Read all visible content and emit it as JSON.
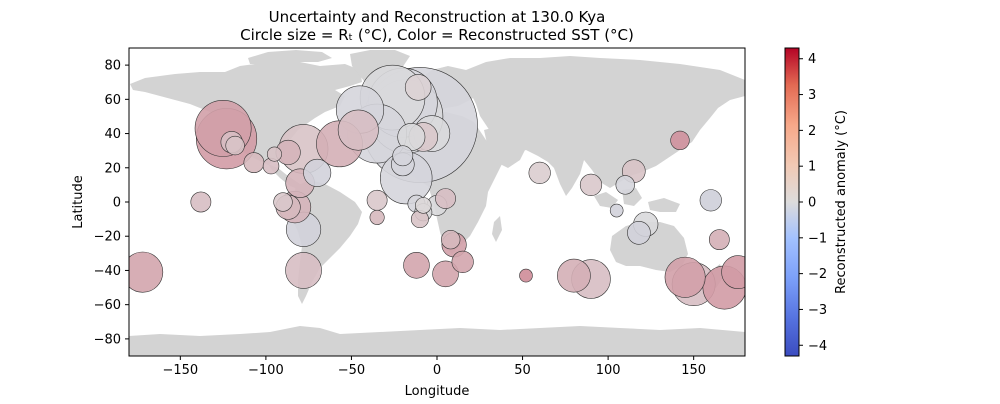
{
  "chart_data": {
    "type": "scatter",
    "title": "Uncertainty and Reconstruction at 130.0 Kya",
    "subtitle": "Circle size = Rₜ (°C), Color = Reconstructed SST (°C)",
    "xlabel": "Longitude",
    "ylabel": "Latitude",
    "xlim": [
      -180,
      180
    ],
    "ylim": [
      -90,
      90
    ],
    "xticks": [
      -150,
      -100,
      -50,
      0,
      50,
      100,
      150
    ],
    "yticks": [
      -80,
      -60,
      -40,
      -20,
      0,
      20,
      40,
      60,
      80
    ],
    "grid": false,
    "colorbar": {
      "label": "Reconstructed anomaly (°C)",
      "range": [
        -4.3,
        4.3
      ],
      "ticks": [
        -4,
        -3,
        -2,
        -1,
        0,
        1,
        2,
        3,
        4
      ],
      "colormap": "coolwarm",
      "low_color": "#3b4cc0",
      "mid_color": "#dddcdc",
      "high_color": "#b40426"
    },
    "land_color": "#d3d3d3",
    "points": [
      {
        "lon": -125,
        "lat": 43,
        "size": 3.9,
        "value": 1.2
      },
      {
        "lon": -123,
        "lat": 37,
        "size": 4.2,
        "value": 1.3
      },
      {
        "lon": -120,
        "lat": 35,
        "size": 1.5,
        "value": 0.6
      },
      {
        "lon": -118,
        "lat": 33,
        "size": 1.3,
        "value": 0.5
      },
      {
        "lon": -107,
        "lat": 23,
        "size": 1.4,
        "value": 0.7
      },
      {
        "lon": -95,
        "lat": 28,
        "size": 1.0,
        "value": 0.5
      },
      {
        "lon": -97,
        "lat": 21,
        "size": 1.1,
        "value": 0.6
      },
      {
        "lon": -87,
        "lat": 29,
        "size": 1.7,
        "value": 0.8
      },
      {
        "lon": -78,
        "lat": 31,
        "size": 3.4,
        "value": 0.5
      },
      {
        "lon": -57,
        "lat": 34,
        "size": 3.2,
        "value": 0.9
      },
      {
        "lon": -46,
        "lat": 42,
        "size": 2.8,
        "value": 0.6
      },
      {
        "lon": -45,
        "lat": 54,
        "size": 3.3,
        "value": -0.2
      },
      {
        "lon": -35,
        "lat": 40,
        "size": 4.1,
        "value": -0.2
      },
      {
        "lon": -26,
        "lat": 61,
        "size": 4.5,
        "value": -0.1
      },
      {
        "lon": -20,
        "lat": 58,
        "size": 4.8,
        "value": -0.2
      },
      {
        "lon": -18,
        "lat": 50,
        "size": 5.1,
        "value": -0.1
      },
      {
        "lon": -10,
        "lat": 45,
        "size": 8.0,
        "value": -0.2
      },
      {
        "lon": -3,
        "lat": 40,
        "size": 2.5,
        "value": -0.1
      },
      {
        "lon": -15,
        "lat": 38,
        "size": 1.9,
        "value": -0.1
      },
      {
        "lon": -8,
        "lat": 38,
        "size": 2.0,
        "value": 0.4
      },
      {
        "lon": -11,
        "lat": 67,
        "size": 1.8,
        "value": 0.2
      },
      {
        "lon": -20,
        "lat": 27,
        "size": 1.4,
        "value": -0.2
      },
      {
        "lon": -20,
        "lat": 22,
        "size": 1.6,
        "value": -0.2
      },
      {
        "lon": -18,
        "lat": 14,
        "size": 3.6,
        "value": -0.2
      },
      {
        "lon": -70,
        "lat": 17,
        "size": 1.9,
        "value": -0.3
      },
      {
        "lon": -80,
        "lat": 11,
        "size": 2.0,
        "value": 0.8
      },
      {
        "lon": -90,
        "lat": 0,
        "size": 1.3,
        "value": 0.4
      },
      {
        "lon": -87,
        "lat": -3,
        "size": 1.7,
        "value": 0.7
      },
      {
        "lon": -83,
        "lat": -3,
        "size": 2.2,
        "value": 0.8
      },
      {
        "lon": -78,
        "lat": -16,
        "size": 2.4,
        "value": -0.3
      },
      {
        "lon": -78,
        "lat": -40,
        "size": 2.5,
        "value": 0.6
      },
      {
        "lon": -138,
        "lat": 0,
        "size": 1.4,
        "value": 0.6
      },
      {
        "lon": -172,
        "lat": -41,
        "size": 2.8,
        "value": 1.1
      },
      {
        "lon": -35,
        "lat": 1,
        "size": 1.4,
        "value": 0.4
      },
      {
        "lon": -35,
        "lat": -9,
        "size": 1.0,
        "value": 0.7
      },
      {
        "lon": -12,
        "lat": -1,
        "size": 1.2,
        "value": -0.2
      },
      {
        "lon": -8,
        "lat": -2,
        "size": 1.1,
        "value": 0.1
      },
      {
        "lon": -8,
        "lat": -6,
        "size": 1.2,
        "value": -0.1
      },
      {
        "lon": -10,
        "lat": -10,
        "size": 1.2,
        "value": 0.5
      },
      {
        "lon": 0,
        "lat": -2,
        "size": 1.4,
        "value": -0.1
      },
      {
        "lon": 5,
        "lat": 2,
        "size": 1.4,
        "value": 0.6
      },
      {
        "lon": 8,
        "lat": -22,
        "size": 1.3,
        "value": 0.7
      },
      {
        "lon": 10,
        "lat": -25,
        "size": 1.7,
        "value": 1.2
      },
      {
        "lon": 15,
        "lat": -35,
        "size": 1.5,
        "value": 1.1
      },
      {
        "lon": -12,
        "lat": -37,
        "size": 1.8,
        "value": 1.1
      },
      {
        "lon": 5,
        "lat": -42,
        "size": 1.8,
        "value": 1.1
      },
      {
        "lon": 52,
        "lat": -43,
        "size": 0.9,
        "value": 1.6
      },
      {
        "lon": 60,
        "lat": 17,
        "size": 1.5,
        "value": 0.3
      },
      {
        "lon": 90,
        "lat": 10,
        "size": 1.5,
        "value": 0.4
      },
      {
        "lon": 80,
        "lat": -43,
        "size": 2.3,
        "value": 0.9
      },
      {
        "lon": 90,
        "lat": -45,
        "size": 2.7,
        "value": 0.6
      },
      {
        "lon": 105,
        "lat": -5,
        "size": 0.9,
        "value": -0.3
      },
      {
        "lon": 110,
        "lat": 10,
        "size": 1.3,
        "value": -0.2
      },
      {
        "lon": 115,
        "lat": 18,
        "size": 1.6,
        "value": 0.5
      },
      {
        "lon": 118,
        "lat": -18,
        "size": 1.6,
        "value": -0.3
      },
      {
        "lon": 122,
        "lat": -13,
        "size": 1.7,
        "value": -0.1
      },
      {
        "lon": 142,
        "lat": 36,
        "size": 1.3,
        "value": 1.5
      },
      {
        "lon": 160,
        "lat": 1,
        "size": 1.5,
        "value": -0.4
      },
      {
        "lon": 165,
        "lat": -22,
        "size": 1.4,
        "value": 0.9
      },
      {
        "lon": 145,
        "lat": -44,
        "size": 2.8,
        "value": 1.2
      },
      {
        "lon": 150,
        "lat": -48,
        "size": 3.0,
        "value": 0.6
      },
      {
        "lon": 168,
        "lat": -50,
        "size": 3.0,
        "value": 1.3
      },
      {
        "lon": 176,
        "lat": -41,
        "size": 2.3,
        "value": 1.3
      }
    ]
  }
}
